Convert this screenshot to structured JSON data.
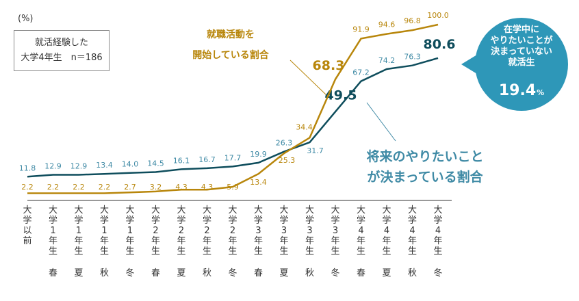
{
  "unit_label": "(%)",
  "sample_box": {
    "line1": "就活経験した",
    "line2": "大学4年生　n＝186"
  },
  "callout": {
    "lines": [
      "在学中に",
      "やりたいことが",
      "決まっていない",
      "就活生"
    ],
    "value": "19.4",
    "pct": "%",
    "color": "#2E97B8"
  },
  "chart_data": {
    "type": "line",
    "categories": [
      "大学以前",
      "大学1年生春",
      "大学1年生夏",
      "大学1年生秋",
      "大学1年生冬",
      "大学2年生春",
      "大学2年生夏",
      "大学2年生秋",
      "大学2年生冬",
      "大学3年生春",
      "大学3年生夏",
      "大学3年生秋",
      "大学3年生冬",
      "大学4年生春",
      "大学4年生夏",
      "大学4年生秋",
      "大学4年生冬"
    ],
    "category_stacks": [
      "大学以前",
      "大学1年生",
      "大学1年生",
      "大学1年生",
      "大学1年生",
      "大学2年生",
      "大学2年生",
      "大学2年生",
      "大学2年生",
      "大学3年生",
      "大学3年生",
      "大学3年生",
      "大学3年生",
      "大学4年生",
      "大学4年生",
      "大学4年生",
      "大学4年生"
    ],
    "seasons": [
      "",
      "春",
      "夏",
      "秋",
      "冬",
      "春",
      "夏",
      "秋",
      "冬",
      "春",
      "夏",
      "秋",
      "冬",
      "春",
      "夏",
      "秋",
      "冬"
    ],
    "series": [
      {
        "name": "将来のやりたいことが決まっている割合",
        "label_lines": [
          "将来のやりたいこと",
          "が決まっている割合"
        ],
        "color": "#0E4D5C",
        "label_color": "#3F8AA5",
        "values": [
          11.8,
          12.9,
          12.9,
          13.4,
          14.0,
          14.5,
          16.1,
          16.7,
          17.7,
          19.9,
          26.3,
          31.7,
          49.5,
          67.2,
          74.2,
          76.3,
          80.6
        ]
      },
      {
        "name": "就職活動を開始している割合",
        "label_lines": [
          "就職活動を",
          "開始している割合"
        ],
        "color": "#B8860B",
        "label_color": "#B8860B",
        "values": [
          2.2,
          2.2,
          2.2,
          2.2,
          2.7,
          3.2,
          4.3,
          4.3,
          5.9,
          13.4,
          25.3,
          34.4,
          68.3,
          91.9,
          94.6,
          96.8,
          100.0
        ]
      }
    ],
    "ylim": [
      0,
      100
    ],
    "grid": false,
    "legend": "inline"
  }
}
